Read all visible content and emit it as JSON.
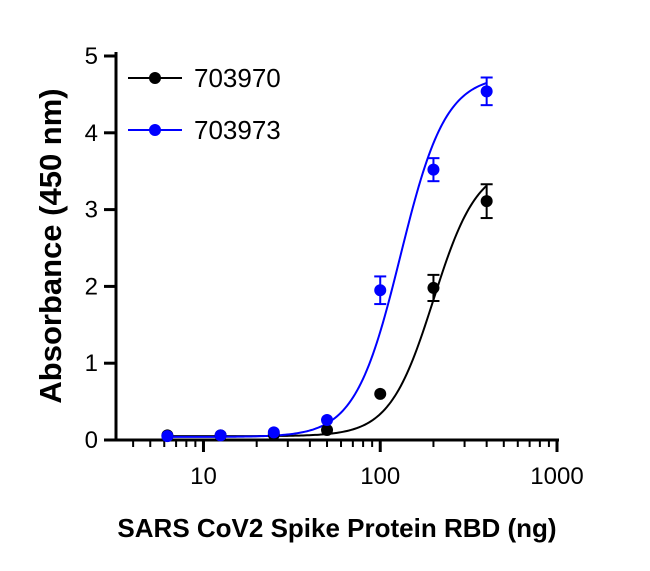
{
  "chart_data": {
    "type": "scatter",
    "xlabel": "SARS CoV2 Spike Protein RBD (ng)",
    "ylabel": "Absorbance (450 nm)",
    "x_scale": "log",
    "xlim": [
      3.2,
      1000
    ],
    "ylim": [
      0,
      5
    ],
    "x_ticks": [
      10,
      100,
      1000
    ],
    "x_tick_labels": [
      "10",
      "100",
      "1000"
    ],
    "y_ticks": [
      0,
      1,
      2,
      3,
      4,
      5
    ],
    "y_tick_labels": [
      "0",
      "1",
      "2",
      "3",
      "4",
      "5"
    ],
    "grid": false,
    "legend_position": "top-left",
    "x": [
      6.25,
      12.5,
      25,
      50,
      100,
      200,
      400
    ],
    "series": [
      {
        "name": "703970",
        "color": "#000000",
        "values": [
          0.06,
          0.06,
          0.07,
          0.13,
          0.6,
          1.98,
          3.11
        ],
        "errors": [
          0.02,
          0.02,
          0.02,
          0.03,
          0.04,
          0.17,
          0.22
        ],
        "fit": {
          "bottom": 0.05,
          "top": 3.6,
          "ec50": 200,
          "hill": 3.5
        }
      },
      {
        "name": "703973",
        "color": "#0000ff",
        "values": [
          0.05,
          0.06,
          0.1,
          0.26,
          1.95,
          3.52,
          4.54
        ],
        "errors": [
          0.01,
          0.01,
          0.02,
          0.03,
          0.18,
          0.15,
          0.18
        ],
        "fit": {
          "bottom": 0.04,
          "top": 4.75,
          "ec50": 130,
          "hill": 3.4
        }
      }
    ]
  }
}
